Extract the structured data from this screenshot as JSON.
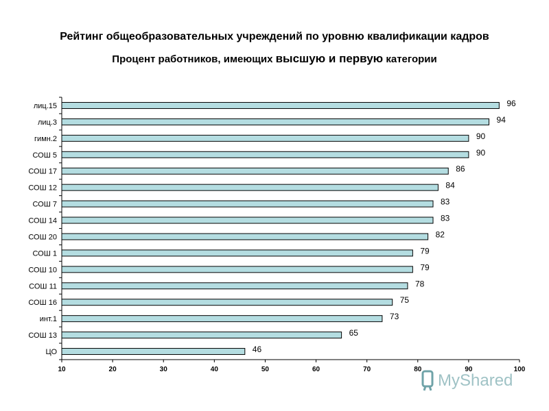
{
  "title": "Рейтинг общеобразовательных учреждений по уровню квалификации кадров",
  "subtitle": {
    "part1": "Процент работников, имеющих ",
    "part2": "высшую и первую",
    "part3": " категории"
  },
  "watermark": "MyShared",
  "colors": {
    "bar_fill": "#b4dde1",
    "bar_stroke": "#000000",
    "axis": "#000000"
  },
  "chart_data": {
    "type": "bar",
    "orientation": "horizontal",
    "categories": [
      "лиц.15",
      "лиц.3",
      "гимн.2",
      "СОШ 5",
      "СОШ 17",
      "СОШ 12",
      "СОШ 7",
      "СОШ 14",
      "СОШ 20",
      "СОШ 1",
      "СОШ 10",
      "СОШ 11",
      "СОШ 16",
      "инт.1",
      "СОШ 13",
      "ЦО"
    ],
    "values": [
      96,
      94,
      90,
      90,
      86,
      84,
      83,
      83,
      82,
      79,
      79,
      78,
      75,
      73,
      65,
      46
    ],
    "xlim": [
      10,
      100
    ],
    "xticks": [
      10,
      20,
      30,
      40,
      50,
      60,
      70,
      80,
      90,
      100
    ],
    "grid": false,
    "legend": "none"
  }
}
